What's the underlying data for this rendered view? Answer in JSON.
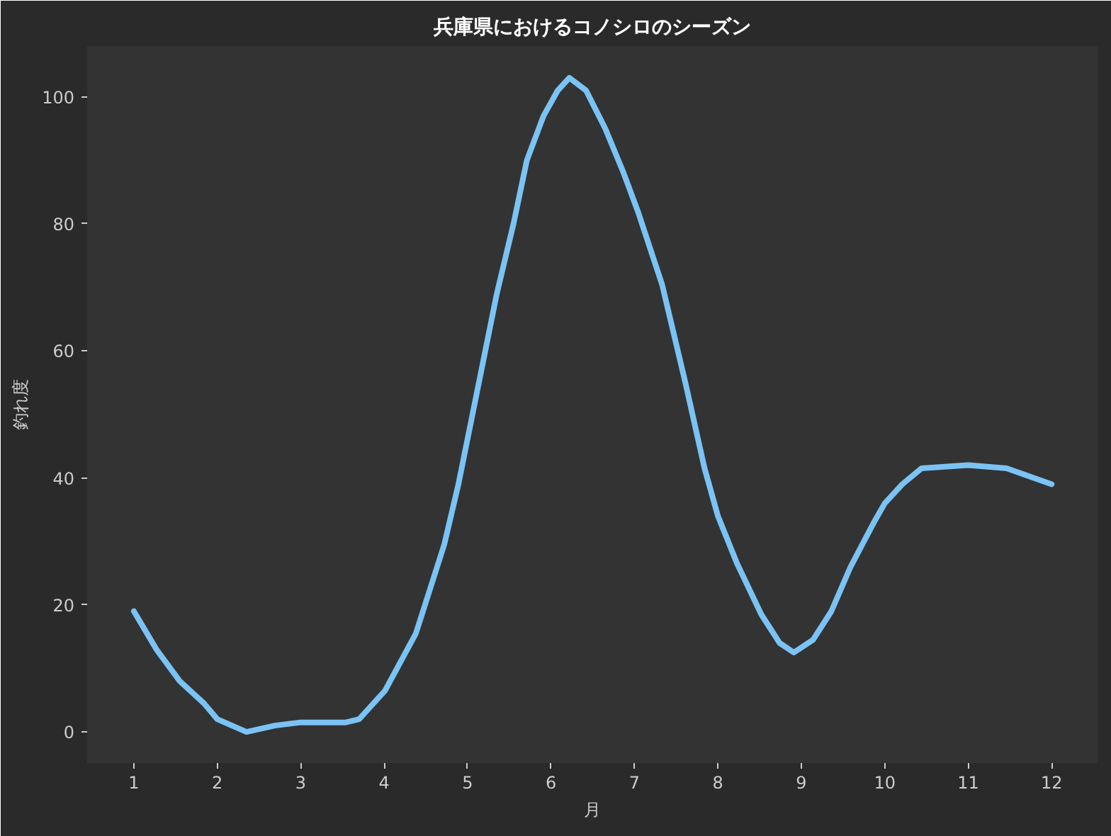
{
  "chart_data": {
    "type": "line",
    "title": "兵庫県におけるコノシロのシーズン",
    "xlabel": "月",
    "ylabel": "釣れ度",
    "x": [
      1.0,
      1.27,
      1.55,
      1.84,
      2.0,
      2.35,
      2.69,
      3.0,
      3.54,
      3.7,
      4.01,
      4.38,
      4.72,
      4.89,
      5.12,
      5.35,
      5.55,
      5.71,
      5.91,
      6.08,
      6.22,
      6.42,
      6.65,
      6.87,
      7.04,
      7.33,
      7.61,
      7.84,
      8.0,
      8.23,
      8.52,
      8.74,
      8.91,
      9.14,
      9.36,
      9.59,
      9.87,
      10.0,
      10.21,
      10.44,
      11.0,
      11.46,
      12.0
    ],
    "series": [
      {
        "color": "#7ac3f4",
        "values": [
          19,
          13,
          8,
          4.5,
          2,
          0,
          1,
          1.5,
          1.5,
          2,
          6.5,
          15.5,
          29.5,
          39,
          54,
          69,
          80,
          90,
          97,
          101,
          103,
          101,
          95,
          88,
          82,
          70.5,
          55,
          41.5,
          34,
          26.5,
          18.5,
          14,
          12.5,
          14.5,
          19,
          26,
          33,
          36,
          39,
          41.5,
          42,
          41.5,
          39
        ]
      }
    ],
    "xlim": [
      0.44,
      12.55
    ],
    "ylim": [
      -4.9,
      108
    ],
    "xticks": [
      1,
      2,
      3,
      4,
      5,
      6,
      7,
      8,
      9,
      10,
      11,
      12
    ],
    "yticks": [
      0,
      20,
      40,
      60,
      80,
      100
    ]
  }
}
